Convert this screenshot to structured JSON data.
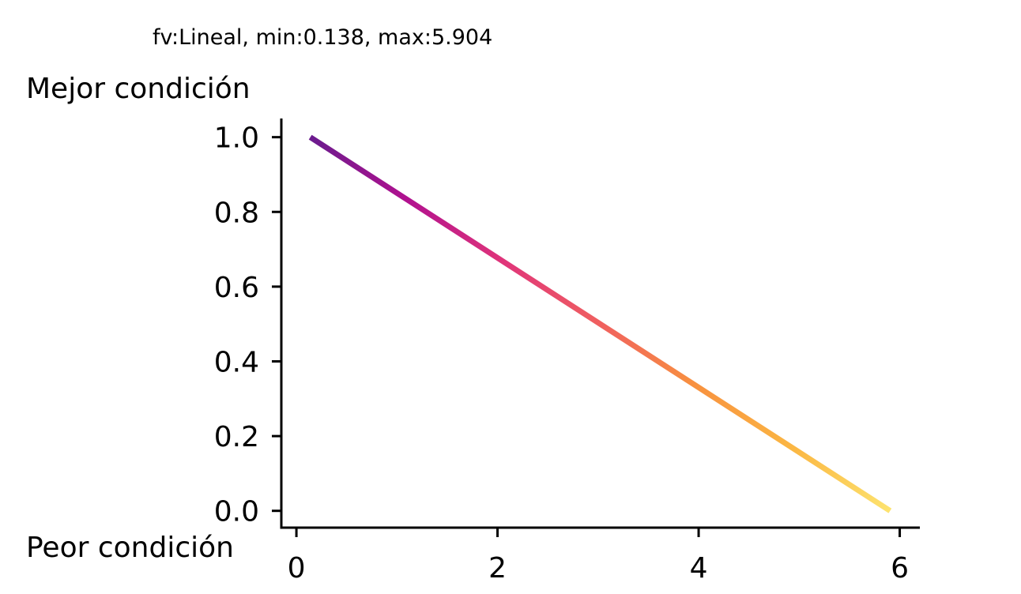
{
  "chart_data": {
    "type": "line",
    "title": "fv:Lineal, min:0.138, max:5.904",
    "xlabel": "",
    "ylabel": "",
    "annotations": {
      "top_left": "Mejor condición",
      "bottom_left": "Peor condición"
    },
    "x": [
      0.138,
      5.904
    ],
    "y": [
      1.0,
      0.0
    ],
    "xlim": [
      -0.15,
      6.2
    ],
    "ylim": [
      -0.045,
      1.05
    ],
    "xticks": [
      0,
      2,
      4,
      6
    ],
    "xtick_labels": [
      "0",
      "2",
      "4",
      "6"
    ],
    "yticks": [
      0.0,
      0.2,
      0.4,
      0.6,
      0.8,
      1.0
    ],
    "ytick_labels": [
      "0.0",
      "0.2",
      "0.4",
      "0.6",
      "0.8",
      "1.0"
    ],
    "colormap": "plasma",
    "gradient_colors": [
      "#6a1b8e",
      "#b1118f",
      "#e0357a",
      "#f0605f",
      "#f8923f",
      "#fbb743",
      "#fde36f"
    ],
    "grid": false,
    "legend": "none",
    "spines": [
      "left",
      "bottom"
    ]
  }
}
